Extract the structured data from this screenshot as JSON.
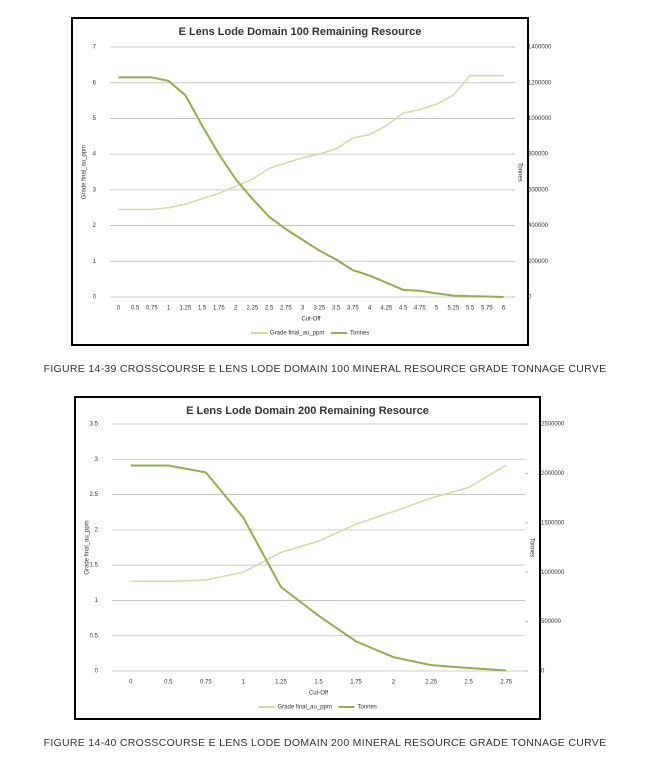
{
  "chart_data": [
    {
      "type": "line",
      "title": "E Lens Lode Domain 100 Remaining Resource",
      "x_label": "Cut-Off",
      "y_label": "Grade final_au_ppm",
      "y2_label": "Tonnes",
      "caption": "FIGURE 14-39 CROSSCOURSE E LENS LODE DOMAIN 100 MINERAL RESOURCE GRADE TONNAGE CURVE",
      "categories": [
        "0",
        "0.5",
        "0.75",
        "1",
        "1.25",
        "1.5",
        "1.75",
        "2",
        "2.25",
        "2.5",
        "2.75",
        "3",
        "3.25",
        "3.5",
        "3.75",
        "4",
        "4.25",
        "4.5",
        "4.75",
        "5",
        "5.25",
        "5.5",
        "5.75",
        "6"
      ],
      "series": [
        {
          "name": "Grade final_au_ppm",
          "color": "#c9dfa6",
          "values": [
            2.45,
            2.45,
            2.45,
            2.5,
            2.6,
            2.75,
            2.9,
            3.1,
            3.3,
            3.6,
            3.75,
            3.9,
            4.0,
            4.15,
            4.45,
            4.55,
            4.8,
            5.15,
            5.25,
            5.4,
            5.65,
            6.2,
            6.2,
            6.2
          ]
        },
        {
          "name": "Tonnes",
          "color": "#8fb04a",
          "axis": "y2",
          "values": [
            1230000,
            1230000,
            1230000,
            1210000,
            1130000,
            960000,
            800000,
            660000,
            550000,
            450000,
            380000,
            320000,
            260000,
            210000,
            150000,
            120000,
            80000,
            40000,
            35000,
            20000,
            8000,
            5000,
            3000,
            0
          ]
        }
      ],
      "ylim": [
        0,
        7
      ],
      "yticks": [
        0,
        1,
        2,
        3,
        4,
        5,
        6,
        7
      ],
      "y2lim": [
        0,
        1400000
      ],
      "y2ticks": [
        0,
        200000,
        400000,
        600000,
        800000,
        1000000,
        1200000,
        1400000
      ],
      "grid": true
    },
    {
      "type": "line",
      "title": "E Lens Lode Domain 200 Remaining Resource",
      "x_label": "Cut-Off",
      "y_label": "Grade final_au_ppm",
      "y2_label": "Tonnes",
      "caption": "FIGURE 14-40 CROSSCOURSE E LENS LODE DOMAIN 200 MINERAL RESOURCE GRADE TONNAGE CURVE",
      "categories": [
        "0",
        "0.5",
        "0.75",
        "1",
        "1.25",
        "1.5",
        "1.75",
        "2",
        "2.25",
        "2.5",
        "2.75"
      ],
      "series": [
        {
          "name": "Grade final_au_ppm",
          "color": "#c9dfa6",
          "values": [
            1.27,
            1.27,
            1.29,
            1.4,
            1.68,
            1.84,
            2.08,
            2.26,
            2.45,
            2.6,
            2.92
          ]
        },
        {
          "name": "Tonnes",
          "color": "#8fb04a",
          "axis": "y2",
          "values": [
            2080000,
            2080000,
            2010000,
            1550000,
            850000,
            560000,
            300000,
            140000,
            60000,
            30000,
            5000
          ]
        }
      ],
      "ylim": [
        0,
        3.5
      ],
      "yticks": [
        0,
        0.5,
        1,
        1.5,
        2,
        2.5,
        3,
        3.5
      ],
      "y2lim": [
        0,
        2500000
      ],
      "y2ticks": [
        0,
        500000,
        1000000,
        1500000,
        2000000,
        2500000
      ],
      "grid": true
    }
  ]
}
